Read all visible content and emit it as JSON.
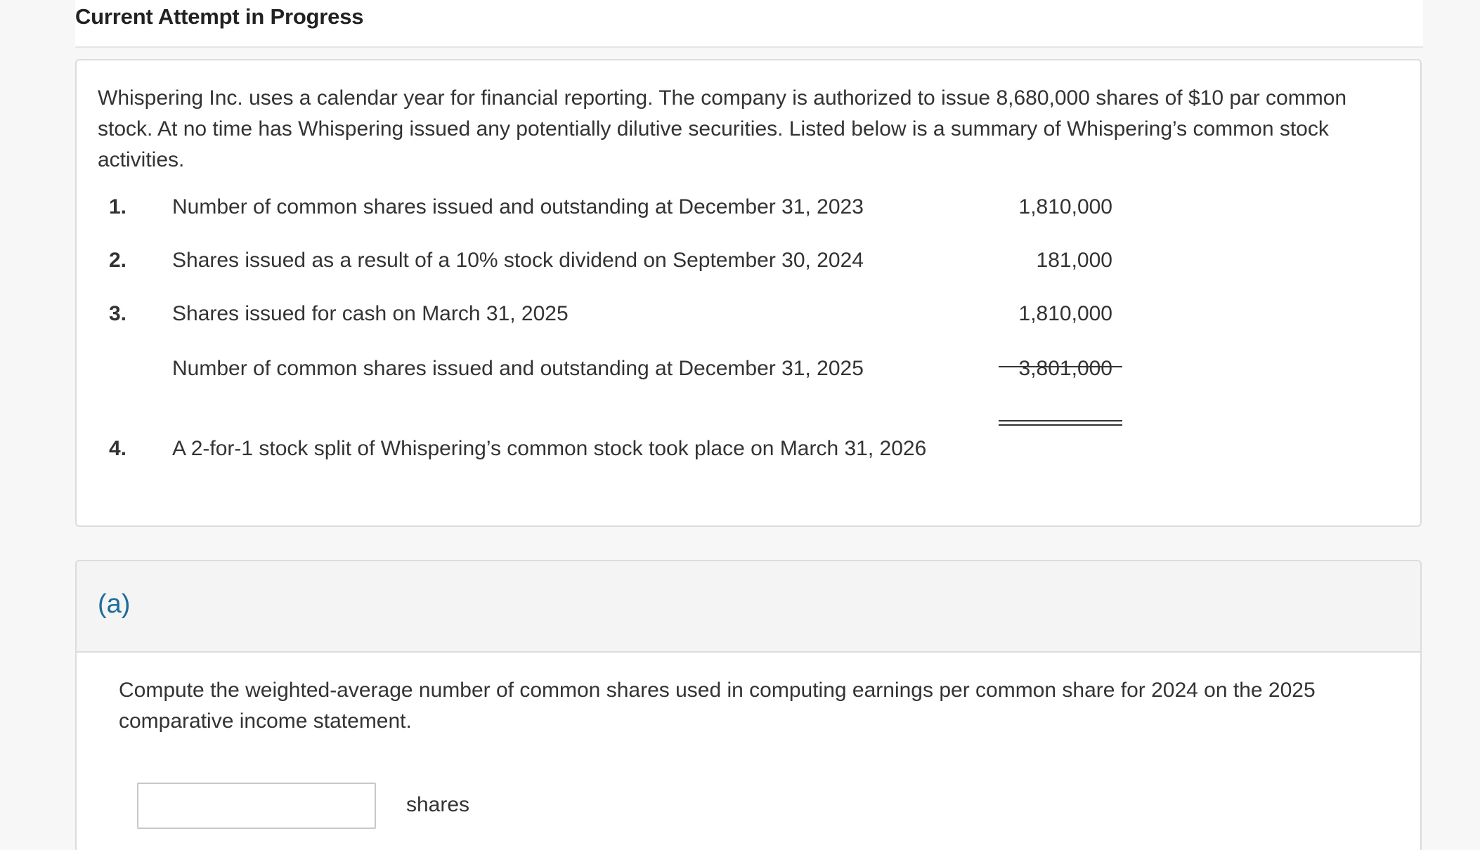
{
  "header": {
    "title": "Current Attempt in Progress"
  },
  "problem": {
    "intro": "Whispering Inc. uses a calendar year for financial reporting. The company is authorized to issue 8,680,000 shares of $10 par common stock. At no time has Whispering issued any potentially dilutive securities. Listed below is a summary of Whispering’s common stock activities.",
    "activities": [
      {
        "num": "1.",
        "description": "Number of common shares issued and outstanding at December 31, 2023",
        "value": "1,810,000"
      },
      {
        "num": "2.",
        "description": "Shares issued as a result of a 10% stock dividend on September 30, 2024",
        "value": "181,000"
      },
      {
        "num": "3.",
        "description": "Shares issued for cash on March 31, 2025",
        "value": "1,810,000"
      },
      {
        "num": "",
        "description": "Number of common shares issued and outstanding at December 31, 2025",
        "value": "3,801,000"
      },
      {
        "num": "4.",
        "description": "A 2-for-1 stock split of Whispering’s common stock took place on March 31, 2026",
        "value": ""
      }
    ]
  },
  "part_a": {
    "label": "(a)",
    "question": "Compute the weighted-average number of common shares used in computing earnings per common share for 2024 on the 2025 comparative income statement.",
    "answer_value": "",
    "answer_placeholder": "",
    "unit": "shares"
  }
}
